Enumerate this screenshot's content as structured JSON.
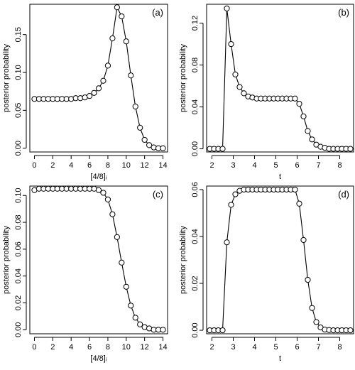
{
  "chart_data": [
    {
      "type": "line",
      "panel_label": "(a)",
      "xlabel": "[4/8]ᵢ",
      "ylabel": "posterior probability",
      "xlim": [
        -0.5,
        14.5
      ],
      "ylim": [
        -0.005,
        0.19
      ],
      "xticks": [
        0,
        2,
        4,
        6,
        8,
        10,
        12,
        14
      ],
      "yticks": [
        0.0,
        0.05,
        0.1,
        0.15
      ],
      "ytick_labels": [
        "0.00",
        "0.05",
        "0.10",
        "0.15"
      ],
      "x": [
        0,
        0.5,
        1,
        1.5,
        2,
        2.5,
        3,
        3.5,
        4,
        4.5,
        5,
        5.5,
        6,
        6.5,
        7,
        7.5,
        8,
        8.5,
        9,
        9.5,
        10,
        10.5,
        11,
        11.5,
        12,
        12.5,
        13,
        13.5,
        14
      ],
      "y": [
        0.065,
        0.065,
        0.065,
        0.065,
        0.065,
        0.065,
        0.065,
        0.065,
        0.065,
        0.066,
        0.066,
        0.067,
        0.069,
        0.073,
        0.079,
        0.089,
        0.109,
        0.145,
        0.186,
        0.174,
        0.141,
        0.096,
        0.055,
        0.027,
        0.011,
        0.004,
        0.001,
        0.0,
        0.0
      ]
    },
    {
      "type": "line",
      "panel_label": "(b)",
      "xlabel": "t",
      "ylabel": "posterior probability",
      "xlim": [
        1.75,
        8.65
      ],
      "ylim": [
        -0.003,
        0.138
      ],
      "xticks": [
        2,
        3,
        4,
        5,
        6,
        7,
        8
      ],
      "yticks": [
        0.0,
        0.04,
        0.08,
        0.12
      ],
      "ytick_labels": [
        "0.00",
        "0.04",
        "0.08",
        "0.12"
      ],
      "x": [
        1.9,
        2.1,
        2.3,
        2.5,
        2.7,
        2.9,
        3.1,
        3.3,
        3.5,
        3.7,
        3.9,
        4.1,
        4.3,
        4.5,
        4.7,
        4.9,
        5.1,
        5.3,
        5.5,
        5.7,
        5.9,
        6.1,
        6.3,
        6.5,
        6.7,
        6.9,
        7.1,
        7.3,
        7.5,
        7.7,
        7.9,
        8.1,
        8.3,
        8.5
      ],
      "y": [
        0.0,
        0.0,
        0.0,
        0.0,
        0.134,
        0.1,
        0.071,
        0.059,
        0.053,
        0.05,
        0.049,
        0.048,
        0.048,
        0.048,
        0.048,
        0.048,
        0.048,
        0.048,
        0.048,
        0.048,
        0.048,
        0.043,
        0.031,
        0.017,
        0.009,
        0.004,
        0.002,
        0.001,
        0.0,
        0.0,
        0.0,
        0.0,
        0.0,
        0.0
      ]
    },
    {
      "type": "line",
      "panel_label": "(c)",
      "xlabel": "[4/8]ᵢ",
      "ylabel": "posterior probability",
      "xlim": [
        -0.5,
        14.5
      ],
      "ylim": [
        -0.003,
        0.107
      ],
      "xticks": [
        0,
        2,
        4,
        6,
        8,
        10,
        12,
        14
      ],
      "yticks": [
        0.0,
        0.02,
        0.04,
        0.06,
        0.08,
        0.1
      ],
      "ytick_labels": [
        "0.00",
        "0.02",
        "0.04",
        "0.06",
        "0.08",
        "0.10"
      ],
      "x": [
        0,
        0.5,
        1,
        1.5,
        2,
        2.5,
        3,
        3.5,
        4,
        4.5,
        5,
        5.5,
        6,
        6.5,
        7,
        7.5,
        8,
        8.5,
        9,
        9.5,
        10,
        10.5,
        11,
        11.5,
        12,
        12.5,
        13,
        13.5,
        14
      ],
      "y": [
        0.104,
        0.105,
        0.105,
        0.105,
        0.105,
        0.105,
        0.105,
        0.105,
        0.105,
        0.105,
        0.105,
        0.105,
        0.105,
        0.105,
        0.104,
        0.102,
        0.097,
        0.086,
        0.069,
        0.05,
        0.032,
        0.018,
        0.009,
        0.004,
        0.002,
        0.001,
        0.0,
        0.0,
        0.0
      ]
    },
    {
      "type": "line",
      "panel_label": "(d)",
      "xlabel": "t",
      "ylabel": "posterior probability",
      "xlim": [
        1.75,
        8.65
      ],
      "ylim": [
        -0.0015,
        0.0615
      ],
      "xticks": [
        2,
        3,
        4,
        5,
        6,
        7,
        8
      ],
      "yticks": [
        0.0,
        0.02,
        0.04,
        0.06
      ],
      "ytick_labels": [
        "0.00",
        "0.02",
        "0.04",
        "0.06"
      ],
      "x": [
        1.9,
        2.1,
        2.3,
        2.5,
        2.7,
        2.9,
        3.1,
        3.3,
        3.5,
        3.7,
        3.9,
        4.1,
        4.3,
        4.5,
        4.7,
        4.9,
        5.1,
        5.3,
        5.5,
        5.7,
        5.9,
        6.1,
        6.3,
        6.5,
        6.7,
        6.9,
        7.1,
        7.3,
        7.5,
        7.7,
        7.9,
        8.1,
        8.3,
        8.5
      ],
      "y": [
        0.0,
        0.0,
        0.0,
        0.0,
        0.0375,
        0.0535,
        0.058,
        0.0595,
        0.06,
        0.06,
        0.06,
        0.06,
        0.06,
        0.06,
        0.06,
        0.06,
        0.06,
        0.06,
        0.06,
        0.06,
        0.06,
        0.054,
        0.0385,
        0.0215,
        0.0095,
        0.0035,
        0.0012,
        0.0003,
        0.0001,
        0.0,
        0.0,
        0.0,
        0.0,
        0.0
      ]
    }
  ]
}
